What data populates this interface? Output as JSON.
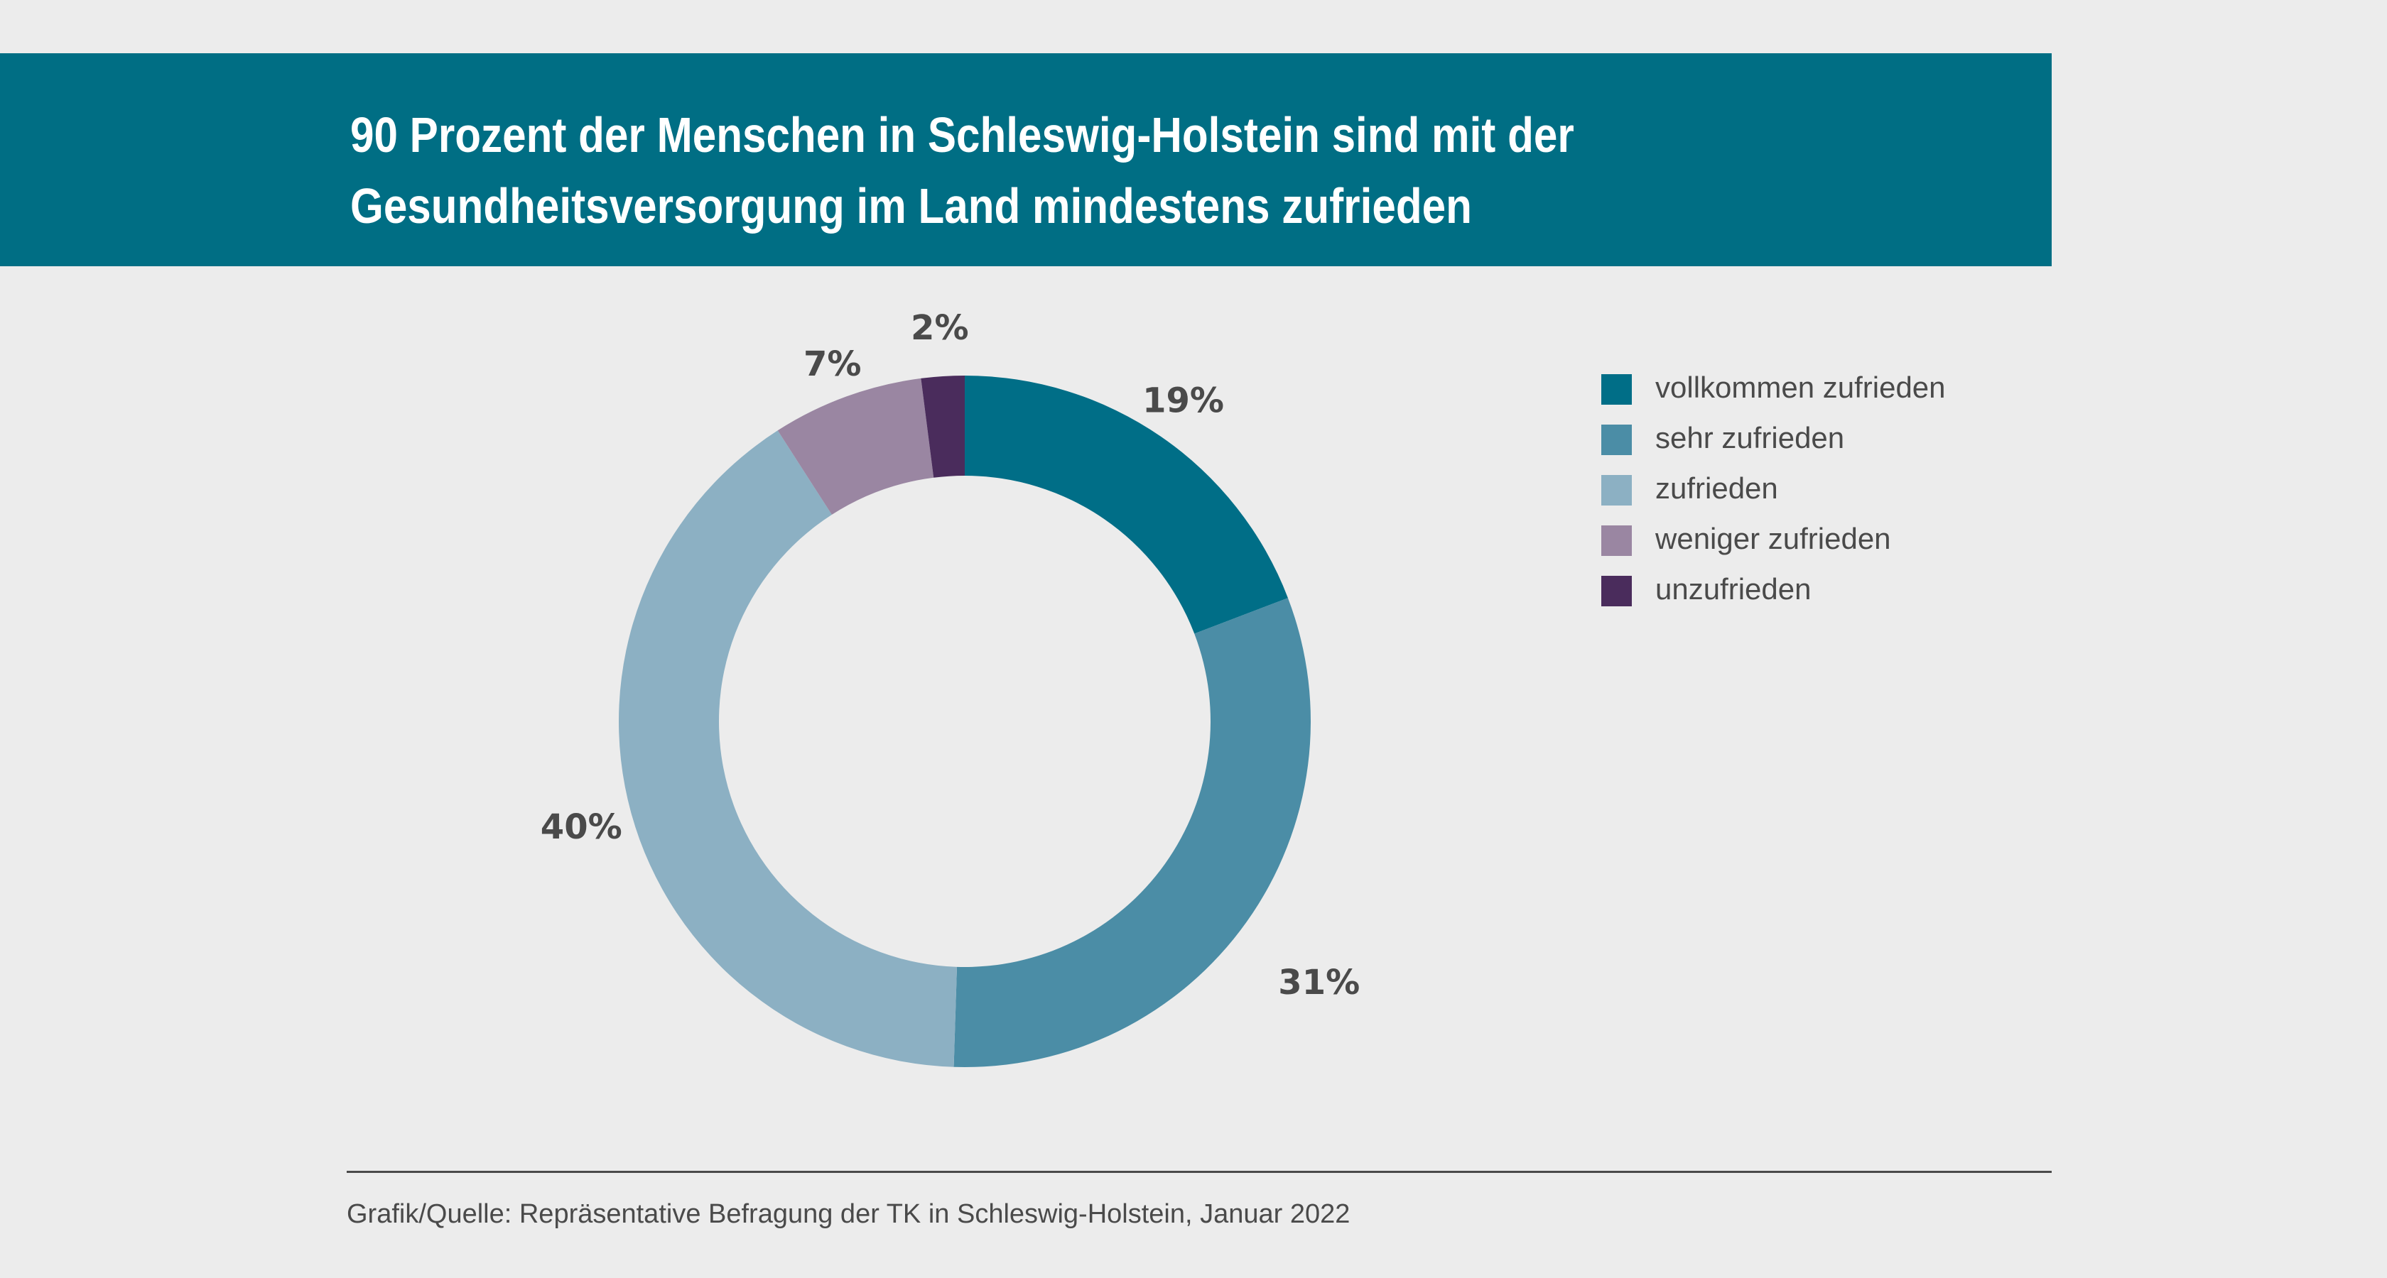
{
  "header": {
    "title_lines": [
      "90 Prozent der Menschen in Schleswig-Holstein sind mit der",
      "Gesundheitsversorgung im Land mindestens zufrieden"
    ],
    "background_color": "#006E84"
  },
  "chart_data": {
    "type": "pie",
    "variant": "donut",
    "title": "90 Prozent der Menschen in Schleswig-Holstein sind mit der Gesundheitsversorgung im Land mindestens zufrieden",
    "categories": [
      "vollkommen zufrieden",
      "sehr zufrieden",
      "zufrieden",
      "weniger zufrieden",
      "unzufrieden"
    ],
    "values": [
      19,
      31,
      40,
      7,
      2
    ],
    "unit": "%",
    "data_labels": [
      "19%",
      "31%",
      "40%",
      "7%",
      "2%"
    ],
    "colors": [
      "#006E87",
      "#4B8DA6",
      "#8CB0C3",
      "#9A86A2",
      "#4A2C5C"
    ],
    "start_angle": "12 o'clock",
    "direction": "clockwise",
    "legend_position": "right"
  },
  "legend": {
    "items": [
      {
        "label": "vollkommen zufrieden",
        "color": "#006E87"
      },
      {
        "label": "sehr zufrieden",
        "color": "#4B8DA6"
      },
      {
        "label": "zufrieden",
        "color": "#8CB0C3"
      },
      {
        "label": "weniger zufrieden",
        "color": "#9A86A2"
      },
      {
        "label": "unzufrieden",
        "color": "#4A2C5C"
      }
    ]
  },
  "footer": {
    "source": "Grafik/Quelle: Repräsentative Befragung der TK in Schleswig-Holstein, Januar 2022"
  }
}
